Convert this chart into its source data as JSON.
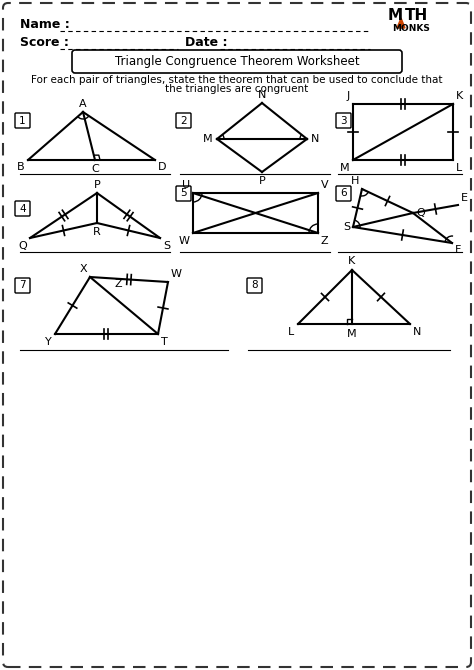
{
  "title": "Triangle Congruence Theorem Worksheet",
  "subtitle_line1": "For each pair of triangles, state the theorem that can be used to conclude that",
  "subtitle_line2": "the triangles are congruent",
  "bg_color": "#ffffff",
  "border_color": "#333333",
  "text_color": "#111111"
}
